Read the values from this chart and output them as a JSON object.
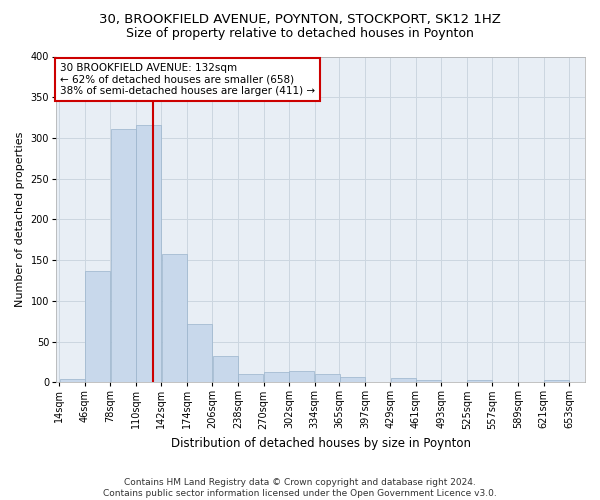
{
  "title": "30, BROOKFIELD AVENUE, POYNTON, STOCKPORT, SK12 1HZ",
  "subtitle": "Size of property relative to detached houses in Poynton",
  "xlabel": "Distribution of detached houses by size in Poynton",
  "ylabel": "Number of detached properties",
  "bar_color": "#c8d8eb",
  "bar_edge_color": "#9ab4cc",
  "bins": [
    14,
    46,
    78,
    110,
    142,
    174,
    206,
    238,
    270,
    302,
    334,
    365,
    397,
    429,
    461,
    493,
    525,
    557,
    589,
    621,
    653
  ],
  "counts": [
    4,
    136,
    311,
    316,
    158,
    71,
    32,
    10,
    13,
    14,
    10,
    7,
    0,
    5,
    3,
    0,
    3,
    0,
    0,
    3
  ],
  "property_size": 132,
  "vline_color": "#cc0000",
  "annotation_line1": "30 BROOKFIELD AVENUE: 132sqm",
  "annotation_line2": "← 62% of detached houses are smaller (658)",
  "annotation_line3": "38% of semi-detached houses are larger (411) →",
  "annotation_box_color": "#ffffff",
  "annotation_box_edge_color": "#cc0000",
  "ylim": [
    0,
    400
  ],
  "yticks": [
    0,
    50,
    100,
    150,
    200,
    250,
    300,
    350,
    400
  ],
  "grid_color": "#ccd6e0",
  "bg_color": "#e8eef5",
  "footer": "Contains HM Land Registry data © Crown copyright and database right 2024.\nContains public sector information licensed under the Open Government Licence v3.0.",
  "title_fontsize": 9.5,
  "subtitle_fontsize": 9,
  "xlabel_fontsize": 8.5,
  "ylabel_fontsize": 8,
  "tick_fontsize": 7,
  "annotation_fontsize": 7.5,
  "footer_fontsize": 6.5
}
